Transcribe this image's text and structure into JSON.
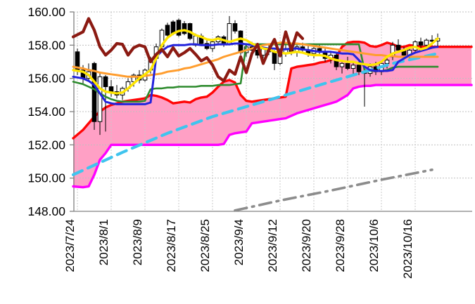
{
  "chart_data": {
    "type": "candlestick",
    "title": "",
    "legend": "none",
    "grid": {
      "h_on": true,
      "v_on": true,
      "h_color": "#bfbfbf",
      "v_color": "#c9c9c9",
      "axis_color": "#808080"
    },
    "y_axis": {
      "min": 148,
      "max": 160,
      "step": 2,
      "labels": [
        "160.00",
        "158.00",
        "156.00",
        "154.00",
        "152.00",
        "150.00",
        "148.00"
      ]
    },
    "x_axis": {
      "labels": [
        "2023/7/24",
        "2023/8/1",
        "2023/8/9",
        "2023/8/17",
        "2023/8/25",
        "2023/9/4",
        "2023/9/12",
        "2023/9/20",
        "2023/9/28",
        "2023/10/6",
        "2023/10/16"
      ],
      "candles_per_tick": 6
    },
    "candle_up": {
      "fill": "#ffffff",
      "stroke": "#000000"
    },
    "candle_down": {
      "fill": "#000000",
      "stroke": "#000000"
    },
    "candles_ohlc": [
      [
        157.6,
        157.8,
        156.2,
        156.5
      ],
      [
        156.5,
        156.8,
        155.7,
        156.0
      ],
      [
        156.0,
        156.9,
        155.9,
        156.4
      ],
      [
        156.9,
        157.0,
        152.9,
        153.4
      ],
      [
        153.4,
        156.4,
        152.6,
        156.1
      ],
      [
        156.1,
        156.2,
        152.8,
        155.5
      ],
      [
        155.5,
        155.9,
        154.9,
        155.2
      ],
      [
        155.2,
        155.6,
        154.8,
        155.0
      ],
      [
        155.0,
        155.5,
        154.7,
        155.4
      ],
      [
        155.4,
        156.0,
        155.2,
        155.8
      ],
      [
        155.8,
        156.3,
        155.5,
        156.2
      ],
      [
        156.2,
        156.5,
        155.7,
        155.9
      ],
      [
        155.9,
        156.6,
        155.8,
        156.5
      ],
      [
        156.5,
        157.3,
        156.3,
        157.2
      ],
      [
        157.2,
        158.1,
        157.0,
        157.9
      ],
      [
        157.9,
        159.0,
        157.8,
        158.9
      ],
      [
        159.2,
        159.35,
        158.5,
        158.6
      ],
      [
        159.4,
        159.5,
        158.6,
        158.7
      ],
      [
        159.5,
        159.6,
        158.5,
        158.6
      ],
      [
        159.3,
        159.45,
        158.6,
        158.7
      ],
      [
        159.3,
        159.35,
        158.3,
        158.4
      ],
      [
        158.0,
        158.7,
        157.9,
        158.55
      ],
      [
        158.55,
        158.7,
        158.0,
        158.1
      ],
      [
        158.1,
        158.35,
        157.7,
        157.8
      ],
      [
        157.8,
        158.3,
        157.6,
        158.2
      ],
      [
        158.2,
        158.6,
        158.0,
        158.5
      ],
      [
        158.5,
        158.6,
        157.9,
        158.05
      ],
      [
        158.05,
        159.75,
        158.0,
        159.3
      ],
      [
        159.3,
        159.5,
        158.7,
        158.85
      ],
      [
        158.85,
        158.9,
        157.4,
        157.55
      ],
      [
        157.55,
        158.1,
        157.3,
        157.9
      ],
      [
        157.9,
        158.2,
        157.5,
        157.7
      ],
      [
        157.7,
        158.0,
        157.2,
        157.4
      ],
      [
        157.4,
        157.9,
        157.2,
        157.8
      ],
      [
        157.8,
        158.0,
        157.4,
        157.6
      ],
      [
        157.6,
        157.7,
        156.5,
        156.9
      ],
      [
        156.9,
        157.7,
        156.8,
        157.5
      ],
      [
        157.5,
        158.0,
        157.3,
        157.8
      ],
      [
        157.8,
        158.05,
        157.4,
        157.6
      ],
      [
        157.6,
        158.0,
        157.3,
        157.9
      ],
      [
        157.9,
        158.15,
        157.5,
        157.7
      ],
      [
        157.7,
        157.95,
        157.3,
        157.5
      ],
      [
        157.5,
        157.9,
        157.2,
        157.8
      ],
      [
        157.8,
        158.0,
        157.4,
        157.6
      ],
      [
        157.6,
        157.8,
        157.0,
        157.2
      ],
      [
        157.2,
        157.6,
        156.9,
        157.4
      ],
      [
        157.4,
        157.5,
        156.5,
        156.7
      ],
      [
        156.7,
        157.1,
        156.3,
        156.9
      ],
      [
        156.9,
        157.3,
        156.5,
        156.6
      ],
      [
        156.6,
        157.0,
        156.2,
        156.8
      ],
      [
        156.8,
        157.0,
        156.2,
        156.4
      ],
      [
        156.4,
        156.6,
        154.3,
        156.3
      ],
      [
        156.3,
        156.9,
        156.1,
        156.7
      ],
      [
        156.7,
        157.0,
        156.2,
        156.4
      ],
      [
        156.4,
        157.0,
        156.2,
        156.9
      ],
      [
        156.9,
        157.3,
        156.6,
        157.1
      ],
      [
        157.3,
        158.2,
        157.1,
        158.0
      ],
      [
        158.0,
        158.35,
        157.6,
        157.7
      ],
      [
        157.7,
        157.9,
        157.2,
        157.4
      ],
      [
        157.4,
        157.8,
        157.2,
        157.7
      ],
      [
        157.7,
        158.3,
        157.6,
        158.2
      ],
      [
        158.2,
        158.45,
        157.8,
        158.0
      ],
      [
        158.0,
        158.4,
        157.8,
        158.3
      ],
      [
        158.3,
        158.6,
        158.0,
        158.25
      ],
      [
        158.25,
        158.7,
        157.9,
        158.4
      ]
    ],
    "cloud": {
      "fill": "#FFA0C5",
      "upper": {
        "name": "cloud-upper-red",
        "color": "#FF0505",
        "width": 3.4,
        "values": [
          152.4,
          152.9,
          153.3,
          153.7,
          154.0,
          154.25,
          154.4,
          154.5,
          154.6,
          154.65,
          154.7,
          154.75,
          154.8,
          155.0,
          154.95,
          154.85,
          154.7,
          154.5,
          154.55,
          154.6,
          154.55,
          154.75,
          154.85,
          154.9,
          155.15,
          155.5,
          155.8,
          155.9,
          155.75,
          155.0,
          154.65,
          154.6,
          154.65,
          154.7,
          154.75,
          154.8,
          154.85,
          154.9,
          156.6,
          156.7,
          156.75,
          156.8,
          156.85,
          156.95,
          157.0,
          157.1,
          157.3,
          157.9,
          158.15,
          158.2,
          158.2,
          158.15,
          157.95,
          157.9,
          158.0,
          158.15,
          158.05,
          157.9,
          157.9,
          158.0,
          157.95,
          157.9,
          157.9,
          157.9,
          157.9,
          157.9,
          157.9,
          157.9,
          157.9,
          157.9,
          157.9
        ]
      },
      "lower": {
        "name": "cloud-lower-magenta",
        "color": "#FF00FF",
        "width": 3.4,
        "values": [
          149.5,
          149.45,
          149.5,
          150.2,
          151.1,
          151.5,
          152.0,
          152.0,
          152.0,
          152.0,
          152.0,
          152.0,
          152.0,
          152.0,
          152.0,
          152.0,
          152.0,
          152.0,
          152.0,
          152.0,
          152.0,
          152.0,
          152.0,
          152.0,
          152.0,
          152.0,
          152.05,
          152.6,
          152.7,
          152.75,
          152.8,
          153.3,
          153.35,
          153.4,
          153.45,
          153.5,
          153.55,
          153.6,
          153.75,
          153.9,
          154.0,
          154.1,
          154.2,
          154.3,
          154.4,
          154.5,
          154.6,
          154.8,
          155.0,
          155.4,
          155.5,
          155.55,
          155.55,
          155.6,
          155.6,
          155.6,
          155.6,
          155.6,
          155.6,
          155.6,
          155.6,
          155.6,
          155.6,
          155.6,
          155.6,
          155.6,
          155.6,
          155.6,
          155.6,
          155.6,
          155.6
        ]
      }
    },
    "lines": [
      {
        "name": "line-green",
        "color": "#2E8B2E",
        "width": 2.6,
        "values": [
          155.8,
          155.65,
          155.5,
          155.35,
          155.1,
          154.9,
          154.75,
          154.65,
          154.6,
          154.6,
          154.6,
          154.6,
          154.65,
          155.35,
          155.4,
          155.4,
          155.45,
          155.45,
          155.5,
          155.5,
          155.5,
          155.5,
          155.55,
          155.55,
          155.55,
          155.6,
          155.6,
          155.6,
          155.65,
          155.7,
          158.05,
          158.05,
          158.05,
          158.05,
          158.05,
          158.05,
          158.05,
          158.05,
          158.05,
          158.05,
          158.05,
          158.05,
          158.05,
          158.05,
          158.05,
          158.05,
          158.05,
          158.05,
          158.05,
          158.05,
          158.05,
          156.5,
          156.45,
          156.45,
          156.45,
          156.5,
          156.65,
          156.7,
          156.7,
          156.7,
          156.7,
          156.7,
          156.7,
          156.7,
          156.7
        ]
      },
      {
        "name": "line-orange",
        "color": "#FF9D2E",
        "width": 3.0,
        "values": [
          156.7,
          156.6,
          156.5,
          156.45,
          156.35,
          156.3,
          156.25,
          156.2,
          156.15,
          156.1,
          156.1,
          156.1,
          156.15,
          156.2,
          156.25,
          156.3,
          156.4,
          156.45,
          156.5,
          156.6,
          156.65,
          156.75,
          156.85,
          156.95,
          157.05,
          157.15,
          157.3,
          157.4,
          157.5,
          157.6,
          157.7,
          157.8,
          157.9,
          158.0,
          158.05,
          158.1,
          158.15,
          158.15,
          158.1,
          158.1,
          158.05,
          158.0,
          157.95,
          157.9,
          157.85,
          157.8,
          157.75,
          157.7,
          157.65,
          157.6,
          157.55,
          157.5,
          157.45,
          157.4,
          157.4,
          157.35,
          157.35,
          157.3,
          157.3,
          157.3,
          157.3,
          157.3,
          157.3,
          157.3,
          157.3
        ]
      },
      {
        "name": "line-blue",
        "color": "#2323DC",
        "width": 3.0,
        "values": [
          156.1,
          156.0,
          155.85,
          155.6,
          155.1,
          154.6,
          154.5,
          154.45,
          154.45,
          154.45,
          154.45,
          154.45,
          154.45,
          154.55,
          157.3,
          157.65,
          157.9,
          158.0,
          158.0,
          158.0,
          158.05,
          158.05,
          158.0,
          158.0,
          158.0,
          158.05,
          158.05,
          158.05,
          158.1,
          158.1,
          158.05,
          158.0,
          157.9,
          157.85,
          157.8,
          157.8,
          157.75,
          157.75,
          157.8,
          157.8,
          157.75,
          157.7,
          157.65,
          157.6,
          157.6,
          157.6,
          157.55,
          157.5,
          157.5,
          157.45,
          157.1,
          156.7,
          156.5,
          156.45,
          156.45,
          156.45,
          156.5,
          157.0,
          157.2,
          157.4,
          157.55,
          157.65,
          157.75,
          157.85,
          157.9
        ]
      },
      {
        "name": "line-yellow",
        "color": "#FFE600",
        "width": 3.4,
        "values": [
          156.5,
          156.4,
          156.2,
          155.8,
          155.4,
          155.2,
          155.15,
          155.1,
          155.15,
          155.4,
          155.7,
          156.0,
          156.25,
          156.5,
          157.2,
          158.0,
          158.45,
          158.7,
          158.85,
          158.9,
          158.8,
          158.6,
          158.5,
          158.35,
          158.3,
          158.4,
          158.3,
          158.2,
          158.3,
          158.4,
          158.3,
          158.1,
          157.95,
          157.8,
          157.75,
          157.6,
          157.55,
          157.5,
          157.55,
          157.6,
          157.55,
          157.45,
          157.4,
          157.4,
          157.35,
          157.2,
          157.1,
          157.05,
          157.0,
          157.0,
          156.9,
          156.85,
          156.8,
          156.85,
          157.0,
          157.3,
          157.5,
          157.6,
          157.7,
          157.85,
          157.9,
          157.75,
          157.85,
          158.1,
          158.4
        ]
      },
      {
        "name": "line-darkred",
        "color": "#8B1A12",
        "width": 4.2,
        "values": [
          158.5,
          158.8,
          159.6,
          158.9,
          157.9,
          157.4,
          157.7,
          158.1,
          158.05,
          157.4,
          157.85,
          158.0,
          157.9,
          157.0,
          157.45,
          157.75,
          157.3,
          157.85,
          157.35,
          157.55,
          157.8,
          157.45,
          157.05,
          157.25,
          156.8,
          156.1,
          155.85,
          156.5,
          156.25,
          157.3,
          156.35,
          157.5,
          158.05,
          156.9,
          157.7,
          158.35,
          157.35,
          158.8,
          157.7,
          158.75,
          158.4
        ]
      }
    ],
    "trendlines": [
      {
        "name": "trend-cyan-dashed",
        "color": "#3FC4EE",
        "width": 4.2,
        "dash": "14 9",
        "points": [
          [
            0,
            150.2
          ],
          [
            8,
            151.55
          ],
          [
            16,
            152.7
          ],
          [
            24,
            153.7
          ],
          [
            32,
            154.5
          ],
          [
            40,
            155.3
          ],
          [
            48,
            156.1
          ],
          [
            56,
            156.9
          ],
          [
            64,
            157.5
          ]
        ]
      },
      {
        "name": "trend-gray-dashdot",
        "color": "#8C8C8C",
        "width": 3.6,
        "dash": "17 8 2.5 8",
        "points": [
          [
            28,
            148.05
          ],
          [
            36,
            148.65
          ],
          [
            45,
            149.25
          ],
          [
            54,
            149.9
          ],
          [
            63,
            150.5
          ]
        ]
      }
    ]
  }
}
